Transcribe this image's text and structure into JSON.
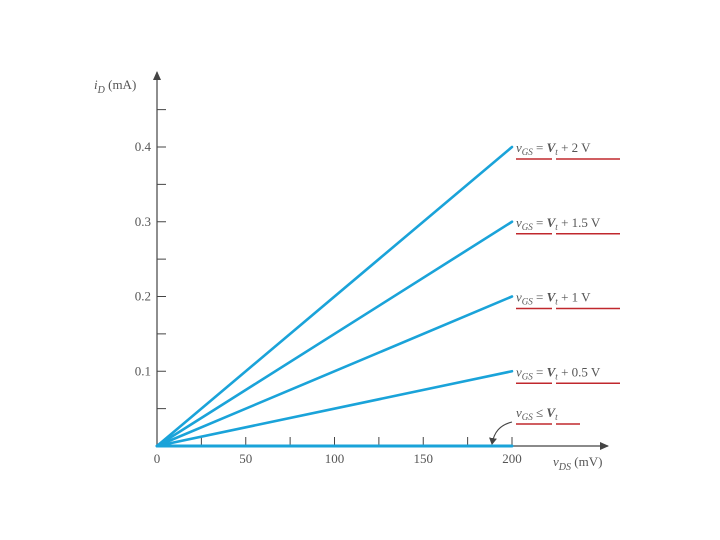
{
  "chart_data": {
    "type": "line",
    "ylabel_main": "i",
    "ylabel_sub": "D",
    "ylabel_unit": " (mA)",
    "xlabel_main": "v",
    "xlabel_sub": "DS",
    "xlabel_unit": " (mV)",
    "xlim": [
      0,
      250
    ],
    "ylim": [
      0,
      0.5
    ],
    "x_ticks": [
      0,
      50,
      100,
      150,
      200
    ],
    "x_tick_labels": [
      "0",
      "50",
      "100",
      "150",
      "200"
    ],
    "y_ticks": [
      0.1,
      0.2,
      0.3,
      0.4
    ],
    "y_tick_labels": [
      "0.1",
      "0.2",
      "0.3",
      "0.4"
    ],
    "series": [
      {
        "label_pre": "v",
        "label_sub": "GS",
        "label_rel": " = ",
        "label_v": "V",
        "label_vsub": "t",
        "label_post": " + 2 V",
        "x": [
          0,
          200
        ],
        "y": [
          0,
          0.4
        ],
        "annotated": false
      },
      {
        "label_pre": "v",
        "label_sub": "GS",
        "label_rel": " = ",
        "label_v": "V",
        "label_vsub": "t",
        "label_post": " + 1.5 V",
        "x": [
          0,
          200
        ],
        "y": [
          0,
          0.3
        ],
        "annotated": false
      },
      {
        "label_pre": "v",
        "label_sub": "GS",
        "label_rel": " = ",
        "label_v": "V",
        "label_vsub": "t",
        "label_post": " + 1 V",
        "x": [
          0,
          200
        ],
        "y": [
          0,
          0.2
        ],
        "annotated": false
      },
      {
        "label_pre": "v",
        "label_sub": "GS",
        "label_rel": " = ",
        "label_v": "V",
        "label_vsub": "t",
        "label_post": " + 0.5 V",
        "x": [
          0,
          200
        ],
        "y": [
          0,
          0.1
        ],
        "annotated": false
      },
      {
        "label_pre": "v",
        "label_sub": "GS",
        "label_rel": " ≤ ",
        "label_v": "V",
        "label_vsub": "t",
        "label_post": "",
        "x": [
          0,
          200
        ],
        "y": [
          0,
          0
        ],
        "annotated": true
      }
    ],
    "colors": {
      "line": "#1aa3d9",
      "axis": "#444444",
      "underline": "#c0282d"
    },
    "grid": false
  }
}
